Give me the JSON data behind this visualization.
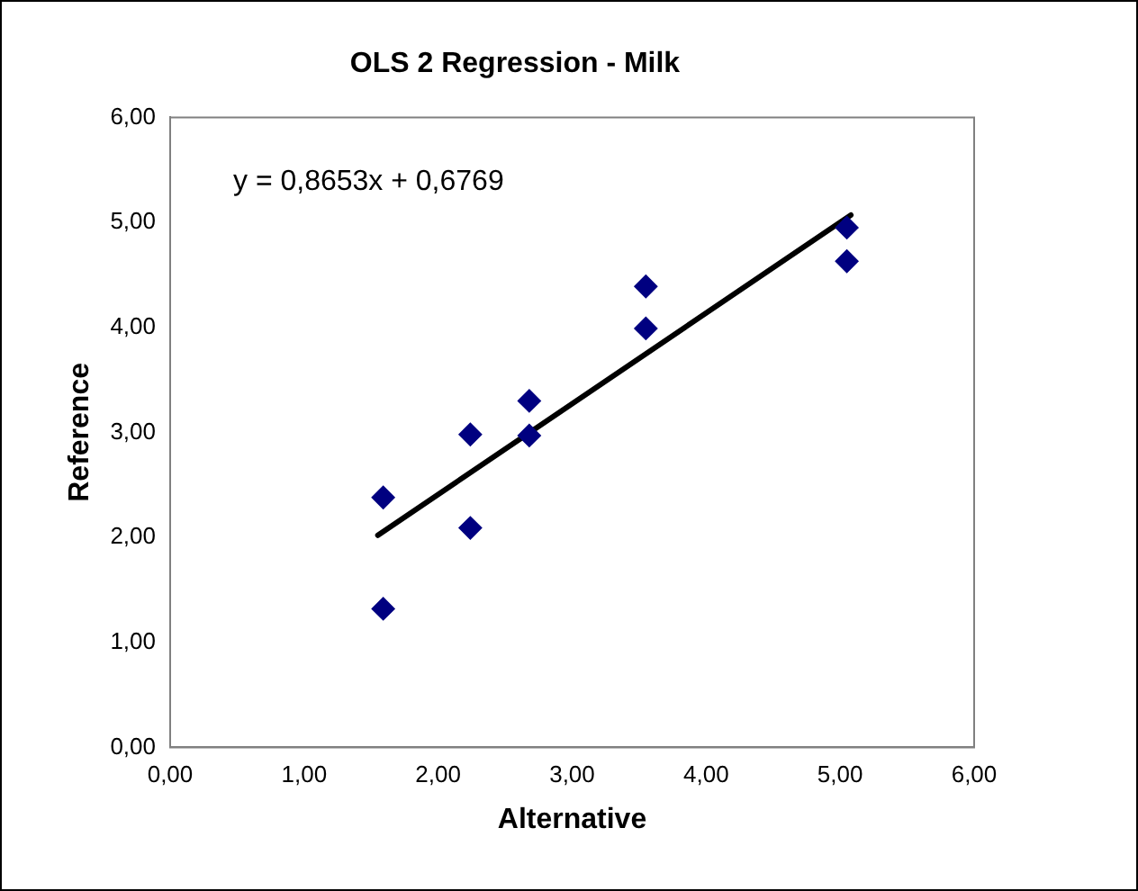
{
  "chart_data": {
    "type": "scatter",
    "title": "OLS 2 Regression - Milk",
    "xlabel": "Alternative",
    "ylabel": "Reference",
    "x": [
      1.59,
      1.59,
      2.24,
      2.24,
      2.68,
      2.68,
      3.55,
      3.55,
      5.05,
      5.05
    ],
    "series": [
      {
        "color": "#000080",
        "marker": "diamond",
        "values": [
          2.38,
          1.32,
          2.98,
          2.09,
          3.3,
          2.97,
          4.39,
          3.99,
          4.95,
          4.63
        ]
      },
      {
        "type": "line",
        "color": "#000000",
        "marker": "none",
        "x": [
          1.55,
          5.08
        ],
        "values": [
          2.02,
          5.07
        ]
      }
    ],
    "xlim": [
      0,
      6
    ],
    "ylim": [
      0,
      6
    ],
    "xticks": [
      {
        "value": 0,
        "label": "0,00"
      },
      {
        "value": 1,
        "label": "1,00"
      },
      {
        "value": 2,
        "label": "2,00"
      },
      {
        "value": 3,
        "label": "3,00"
      },
      {
        "value": 4,
        "label": "4,00"
      },
      {
        "value": 5,
        "label": "5,00"
      },
      {
        "value": 6,
        "label": "6,00"
      }
    ],
    "yticks": [
      {
        "value": 0,
        "label": "0,00"
      },
      {
        "value": 1,
        "label": "1,00"
      },
      {
        "value": 2,
        "label": "2,00"
      },
      {
        "value": 3,
        "label": "3,00"
      },
      {
        "value": 4,
        "label": "4,00"
      },
      {
        "value": 5,
        "label": "5,00"
      },
      {
        "value": 6,
        "label": "6,00"
      }
    ],
    "annotations": [
      "y = 0,8653x + 0,6769"
    ],
    "grid": false,
    "legend": false
  }
}
